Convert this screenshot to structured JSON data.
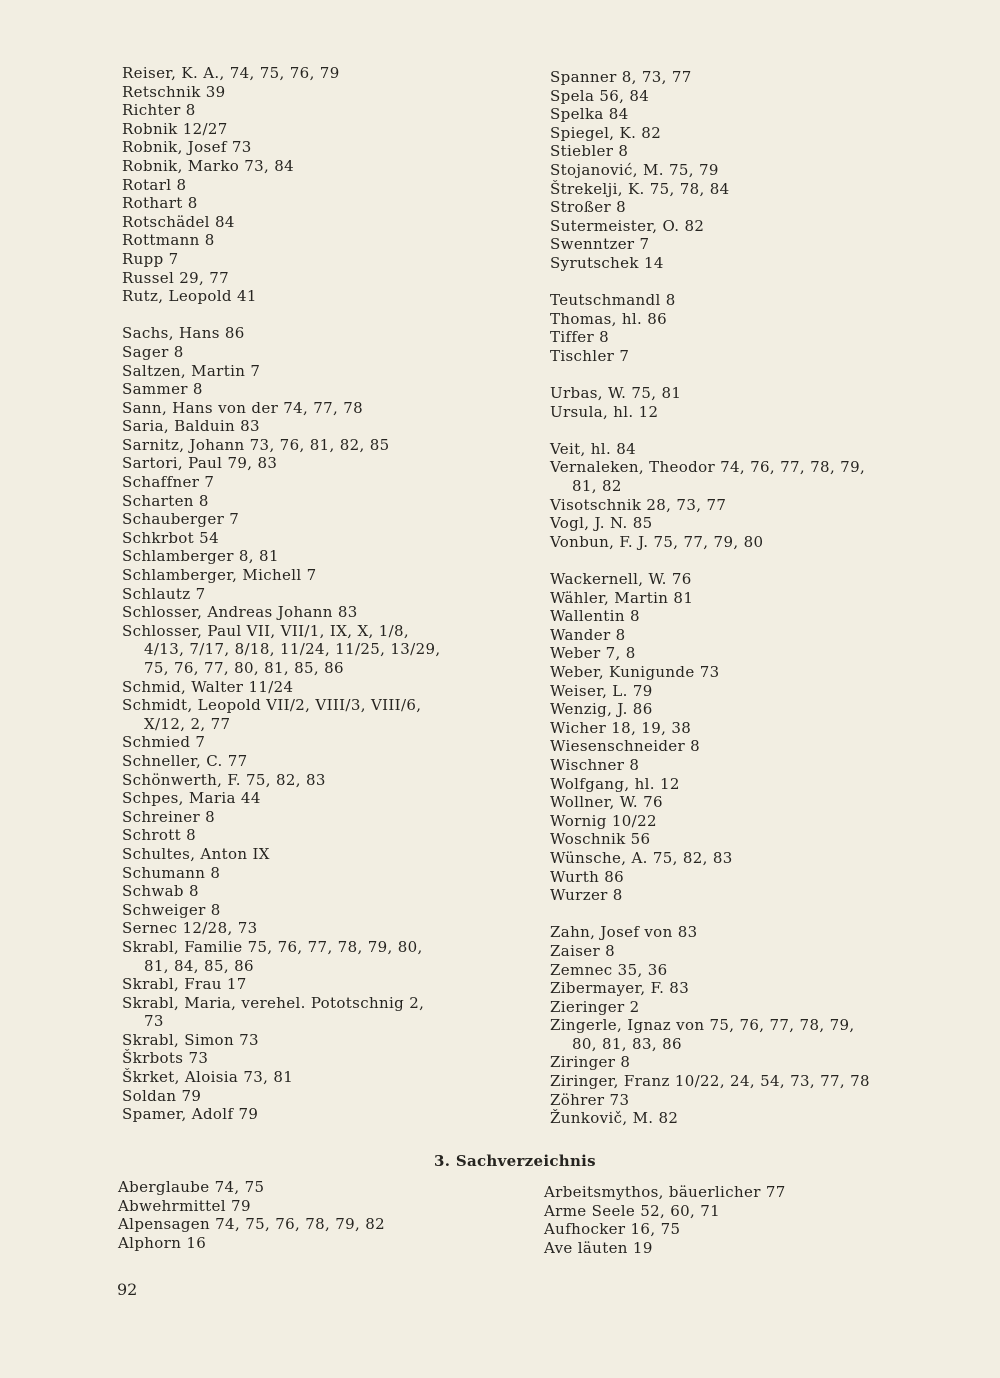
{
  "persons_left": [
    [
      {
        "text": "Reiser, K. A., 74, 75, 76, 79"
      },
      {
        "text": "Retschnik 39"
      },
      {
        "text": "Richter 8"
      },
      {
        "text": "Robnik 12/27"
      },
      {
        "text": "Robnik, Josef 73"
      },
      {
        "text": "Robnik, Marko 73, 84"
      },
      {
        "text": "Rotarl 8"
      },
      {
        "text": "Rothart 8"
      },
      {
        "text": "Rotschädel 84"
      },
      {
        "text": "Rottmann 8"
      },
      {
        "text": "Rupp 7"
      },
      {
        "text": "Russel 29, 77"
      },
      {
        "text": "Rutz, Leopold 41"
      }
    ],
    [
      {
        "text": "Sachs, Hans 86"
      },
      {
        "text": "Sager 8"
      },
      {
        "text": "Saltzen, Martin 7"
      },
      {
        "text": "Sammer 8"
      },
      {
        "text": "Sann, Hans von der 74, 77, 78"
      },
      {
        "text": "Saria, Balduin 83"
      },
      {
        "text": "Sarnitz, Johann 73, 76, 81, 82, 85"
      },
      {
        "text": "Sartori, Paul 79, 83"
      },
      {
        "text": "Schaffner 7"
      },
      {
        "text": "Scharten 8"
      },
      {
        "text": "Schauberger 7"
      },
      {
        "text": "Schkrbot 54"
      },
      {
        "text": "Schlamberger 8, 81"
      },
      {
        "text": "Schlamberger, Michell 7"
      },
      {
        "text": "Schlautz 7"
      },
      {
        "text": "Schlosser, Andreas Johann 83"
      },
      {
        "text": "Schlosser, Paul VII, VII/1, IX, X, 1/8,",
        "cont": [
          "4/13, 7/17, 8/18, 11/24, 11/25, 13/29,",
          "75, 76, 77, 80, 81, 85, 86"
        ]
      },
      {
        "text": "Schmid, Walter 11/24"
      },
      {
        "text": "Schmidt, Leopold VII/2, VIII/3, VIII/6,",
        "cont": [
          "X/12, 2, 77"
        ]
      },
      {
        "text": "Schmied 7"
      },
      {
        "text": "Schneller, C. 77"
      },
      {
        "text": "Schönwerth, F. 75, 82, 83"
      },
      {
        "text": "Schpes, Maria 44"
      },
      {
        "text": "Schreiner 8"
      },
      {
        "text": "Schrott 8"
      },
      {
        "text": "Schultes, Anton IX"
      },
      {
        "text": "Schumann 8"
      },
      {
        "text": "Schwab 8"
      },
      {
        "text": "Schweiger 8"
      },
      {
        "text": "Sernec 12/28, 73"
      },
      {
        "text": "Skrabl, Familie 75, 76, 77, 78, 79, 80,",
        "cont": [
          "81, 84, 85, 86"
        ]
      },
      {
        "text": "Skrabl, Frau 17"
      },
      {
        "text": "Skrabl, Maria, verehel. Pototschnig 2,",
        "cont": [
          "73"
        ]
      },
      {
        "text": "Skrabl, Simon 73"
      },
      {
        "text": "Škrbots 73"
      },
      {
        "text": "Škrket, Aloisia 73, 81"
      },
      {
        "text": "Soldan 79"
      },
      {
        "text": "Spamer, Adolf 79"
      }
    ]
  ],
  "persons_right": [
    [
      {
        "text": "Spanner 8, 73, 77"
      },
      {
        "text": "Spela 56, 84"
      },
      {
        "text": "Spelka 84"
      },
      {
        "text": "Spiegel, K. 82"
      },
      {
        "text": "Stiebler 8"
      },
      {
        "text": "Stojanović, M. 75, 79"
      },
      {
        "text": "Štrekelji, K. 75, 78, 84"
      },
      {
        "text": "Stroßer 8"
      },
      {
        "text": "Sutermeister, O. 82"
      },
      {
        "text": "Swenntzer 7"
      },
      {
        "text": "Syrutschek 14"
      }
    ],
    [
      {
        "text": "Teutschmandl 8"
      },
      {
        "text": "Thomas, hl. 86"
      },
      {
        "text": "Tiffer 8"
      },
      {
        "text": "Tischler 7"
      }
    ],
    [
      {
        "text": "Urbas, W. 75, 81"
      },
      {
        "text": "Ursula, hl. 12"
      }
    ],
    [
      {
        "text": "Veit, hl. 84"
      },
      {
        "text": "Vernaleken, Theodor 74, 76, 77, 78, 79,",
        "cont": [
          "81, 82"
        ]
      },
      {
        "text": "Visotschnik 28, 73, 77"
      },
      {
        "text": "Vogl, J. N. 85"
      },
      {
        "text": "Vonbun, F. J. 75, 77, 79, 80"
      }
    ],
    [
      {
        "text": "Wackernell, W. 76"
      },
      {
        "text": "Wähler, Martin 81"
      },
      {
        "text": "Wallentin 8"
      },
      {
        "text": "Wander 8"
      },
      {
        "text": "Weber 7, 8"
      },
      {
        "text": "Weber, Kunigunde 73"
      },
      {
        "text": "Weiser, L. 79"
      },
      {
        "text": "Wenzig, J. 86"
      },
      {
        "text": "Wicher 18, 19, 38"
      },
      {
        "text": "Wiesenschneider 8"
      },
      {
        "text": "Wischner 8"
      },
      {
        "text": "Wolfgang, hl. 12"
      },
      {
        "text": "Wollner, W. 76"
      },
      {
        "text": "Wornig 10/22"
      },
      {
        "text": "Woschnik 56"
      },
      {
        "text": "Wünsche, A. 75, 82, 83"
      },
      {
        "text": "Wurth 86"
      },
      {
        "text": "Wurzer 8"
      }
    ],
    [
      {
        "text": "Zahn, Josef von 83"
      },
      {
        "text": "Zaiser 8"
      },
      {
        "text": "Zemnec 35, 36"
      },
      {
        "text": "Zibermayer, F. 83"
      },
      {
        "text": "Zieringer 2"
      },
      {
        "text": "Zingerle, Ignaz von 75, 76, 77, 78, 79,",
        "cont": [
          "80, 81, 83, 86"
        ]
      },
      {
        "text": "Ziringer 8"
      },
      {
        "text": "Ziringer, Franz 10/22, 24, 54, 73, 77, 78"
      },
      {
        "text": "Zöhrer 73"
      },
      {
        "text": "Žunkovič, M. 82"
      }
    ]
  ],
  "section_heading": "3. Sachverzeichnis",
  "subjects_left": [
    "Aberglaube 74, 75",
    "Abwehrmittel 79",
    "Alpensagen 74, 75, 76, 78, 79, 82",
    "Alphorn 16"
  ],
  "subjects_right": [
    "Arbeitsmythos, bäuerlicher 77",
    "Arme Seele 52, 60, 71",
    "Aufhocker 16, 75",
    "Ave läuten 19"
  ],
  "page_number": "92"
}
